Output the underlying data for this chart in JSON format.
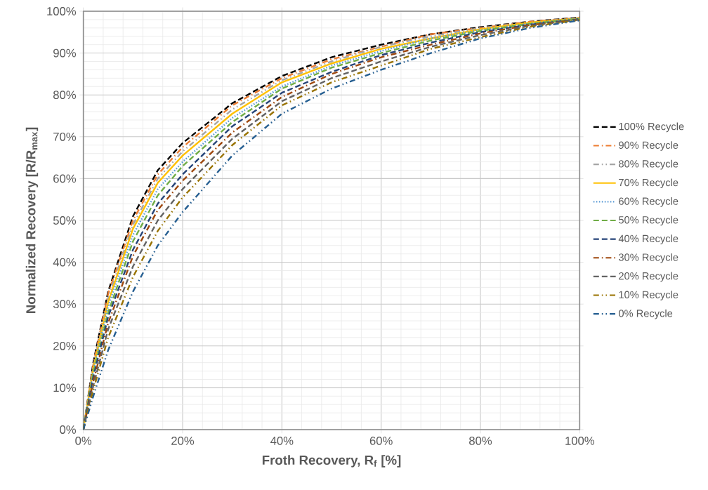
{
  "chart_data": {
    "type": "line",
    "xlabel": "Froth Recovery, R$_{f}$ [%]",
    "ylabel": "Normalized Recovery [R/R$_{max}$]",
    "x": [
      0,
      2,
      5,
      10,
      15,
      20,
      30,
      40,
      50,
      60,
      70,
      80,
      90,
      100
    ],
    "xlim": [
      0,
      100
    ],
    "ylim": [
      0,
      100
    ],
    "xticks": [
      {
        "value": 0,
        "label": "0%"
      },
      {
        "value": 20,
        "label": "20%"
      },
      {
        "value": 40,
        "label": "40%"
      },
      {
        "value": 60,
        "label": "60%"
      },
      {
        "value": 80,
        "label": "80%"
      },
      {
        "value": 100,
        "label": "100%"
      }
    ],
    "yticks": [
      {
        "value": 0,
        "label": "0%"
      },
      {
        "value": 10,
        "label": "10%"
      },
      {
        "value": 20,
        "label": "20%"
      },
      {
        "value": 30,
        "label": "30%"
      },
      {
        "value": 40,
        "label": "40%"
      },
      {
        "value": 50,
        "label": "50%"
      },
      {
        "value": 60,
        "label": "60%"
      },
      {
        "value": 70,
        "label": "70%"
      },
      {
        "value": 80,
        "label": "80%"
      },
      {
        "value": 90,
        "label": "90%"
      },
      {
        "value": 100,
        "label": "100%"
      }
    ],
    "grid": true,
    "legend": "right",
    "marker": "none",
    "series": [
      {
        "name": "100% Recycle",
        "color": "#000000",
        "line_style": "dashed",
        "values": [
          0,
          16,
          33,
          51,
          62,
          68.5,
          78,
          84.5,
          89,
          92,
          94.5,
          96.2,
          97.5,
          98.5
        ]
      },
      {
        "name": "90% Recycle",
        "color": "#ed7d31",
        "line_style": "dashdot",
        "values": [
          0,
          15.5,
          32.5,
          50,
          61,
          67.5,
          77.5,
          84,
          88.5,
          91.5,
          94.5,
          96,
          97.5,
          98.4
        ]
      },
      {
        "name": "80% Recycle",
        "color": "#a5a5a5",
        "line_style": "dashdotdot",
        "values": [
          0,
          15,
          31.5,
          49,
          60,
          66.5,
          76.5,
          83.5,
          88,
          91.5,
          94,
          96,
          97.3,
          98.4
        ]
      },
      {
        "name": "70% Recycle",
        "color": "#ffc000",
        "line_style": "solid",
        "values": [
          0,
          14.5,
          30.5,
          48,
          59,
          65.5,
          75.5,
          83,
          87.5,
          91,
          93.5,
          95.7,
          97.3,
          98.3
        ]
      },
      {
        "name": "60% Recycle",
        "color": "#5b9bd5",
        "line_style": "dotted",
        "values": [
          0,
          14,
          29.5,
          46.5,
          57.5,
          64,
          74.5,
          82,
          87,
          90.5,
          93.5,
          95.5,
          97.1,
          98.3
        ]
      },
      {
        "name": "50% Recycle",
        "color": "#70ad47",
        "line_style": "dashed",
        "values": [
          0,
          13.5,
          28,
          45,
          56,
          63,
          73.5,
          81.5,
          86.5,
          90,
          93,
          95.3,
          97,
          98.2
        ]
      },
      {
        "name": "40% Recycle",
        "color": "#264478",
        "line_style": "dashed",
        "values": [
          0,
          12.5,
          27,
          43,
          54,
          61,
          72.5,
          80.5,
          85.5,
          89.5,
          92.5,
          95,
          96.8,
          98.1
        ]
      },
      {
        "name": "30% Recycle",
        "color": "#9e480e",
        "line_style": "dashdot",
        "values": [
          0,
          11.5,
          25.5,
          41.5,
          52.5,
          59.5,
          71,
          79.5,
          85,
          89,
          92,
          94.7,
          96.7,
          98
        ]
      },
      {
        "name": "20% Recycle",
        "color": "#636363",
        "line_style": "dashed",
        "values": [
          0,
          10.5,
          24,
          39,
          50,
          57.5,
          69.5,
          78.5,
          84,
          88,
          91.5,
          94.3,
          96.5,
          98
        ]
      },
      {
        "name": "10% Recycle",
        "color": "#997300",
        "line_style": "dashdotdot",
        "values": [
          0,
          9.5,
          22,
          36.5,
          47.5,
          55.5,
          68,
          77.5,
          83,
          87,
          91,
          93.8,
          96.3,
          97.9
        ]
      },
      {
        "name": "0% Recycle",
        "color": "#255e91",
        "line_style": "dashdotdot",
        "values": [
          0,
          8,
          19,
          33,
          44,
          52,
          65.5,
          75.5,
          81.5,
          86,
          90,
          93.5,
          96,
          97.8
        ]
      }
    ]
  }
}
